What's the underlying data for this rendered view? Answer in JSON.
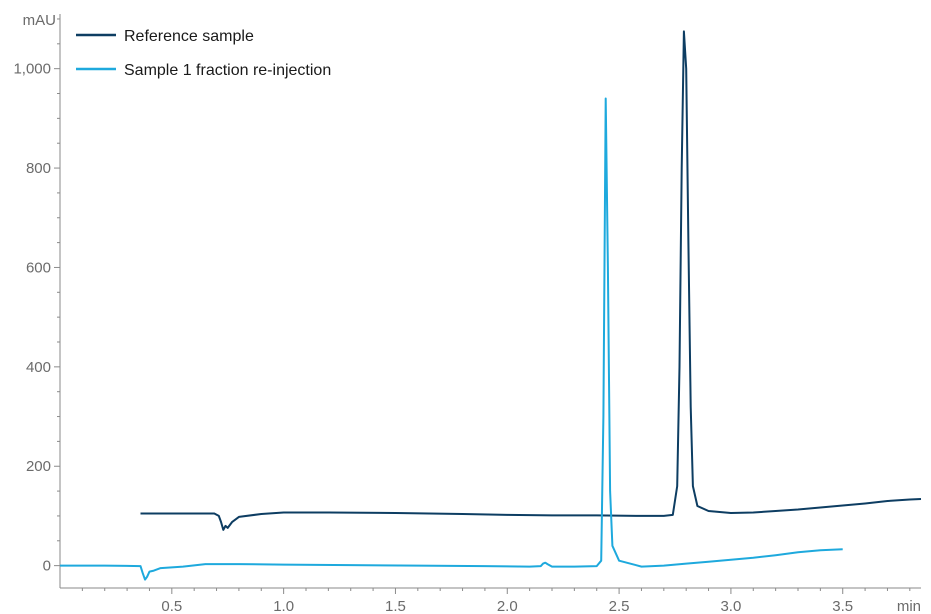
{
  "chart_data": {
    "type": "line",
    "xlabel": "min",
    "ylabel": "mAU",
    "xlim": [
      0,
      3.85
    ],
    "ylim": [
      -45,
      1110
    ],
    "x_ticks": [
      0.5,
      1.0,
      1.5,
      2.0,
      2.5,
      3.0,
      3.5
    ],
    "x_tick_labels": [
      "0.5",
      "1.0",
      "1.5",
      "2.0",
      "2.5",
      "3.0",
      "3.5"
    ],
    "y_ticks": [
      0,
      200,
      400,
      600,
      800,
      1000
    ],
    "y_tick_labels": [
      "0",
      "200",
      "400",
      "600",
      "800",
      "1,000"
    ],
    "grid": false,
    "legend_position": "top-left",
    "series": [
      {
        "name": "Reference sample",
        "color": "#0d3d62",
        "points": [
          [
            0.36,
            105
          ],
          [
            0.5,
            105
          ],
          [
            0.6,
            105
          ],
          [
            0.69,
            105
          ],
          [
            0.71,
            100
          ],
          [
            0.72,
            88
          ],
          [
            0.73,
            72
          ],
          [
            0.74,
            80
          ],
          [
            0.75,
            76
          ],
          [
            0.77,
            88
          ],
          [
            0.8,
            98
          ],
          [
            0.9,
            104
          ],
          [
            1.0,
            107
          ],
          [
            1.2,
            107
          ],
          [
            1.5,
            106
          ],
          [
            1.8,
            104
          ],
          [
            2.0,
            102
          ],
          [
            2.2,
            101
          ],
          [
            2.4,
            101
          ],
          [
            2.6,
            100
          ],
          [
            2.7,
            100
          ],
          [
            2.74,
            102
          ],
          [
            2.76,
            160
          ],
          [
            2.77,
            400
          ],
          [
            2.78,
            800
          ],
          [
            2.79,
            1075
          ],
          [
            2.8,
            1000
          ],
          [
            2.81,
            650
          ],
          [
            2.82,
            320
          ],
          [
            2.83,
            160
          ],
          [
            2.85,
            120
          ],
          [
            2.9,
            110
          ],
          [
            3.0,
            106
          ],
          [
            3.1,
            107
          ],
          [
            3.2,
            110
          ],
          [
            3.3,
            113
          ],
          [
            3.4,
            117
          ],
          [
            3.5,
            121
          ],
          [
            3.6,
            125
          ],
          [
            3.7,
            130
          ],
          [
            3.8,
            133
          ],
          [
            3.85,
            134
          ]
        ]
      },
      {
        "name": "Sample 1 fraction re-injection",
        "color": "#1ea9dd",
        "points": [
          [
            0.0,
            0
          ],
          [
            0.2,
            0
          ],
          [
            0.36,
            -1
          ],
          [
            0.37,
            -15
          ],
          [
            0.38,
            -28
          ],
          [
            0.39,
            -22
          ],
          [
            0.4,
            -12
          ],
          [
            0.42,
            -10
          ],
          [
            0.45,
            -5
          ],
          [
            0.55,
            -2
          ],
          [
            0.65,
            3
          ],
          [
            0.8,
            3
          ],
          [
            1.0,
            2
          ],
          [
            1.3,
            1
          ],
          [
            1.6,
            0
          ],
          [
            1.9,
            -1
          ],
          [
            2.1,
            -2
          ],
          [
            2.15,
            -1
          ],
          [
            2.16,
            4
          ],
          [
            2.17,
            6
          ],
          [
            2.18,
            3
          ],
          [
            2.2,
            -2
          ],
          [
            2.3,
            -2
          ],
          [
            2.4,
            -1
          ],
          [
            2.42,
            10
          ],
          [
            2.43,
            300
          ],
          [
            2.44,
            940
          ],
          [
            2.45,
            600
          ],
          [
            2.46,
            150
          ],
          [
            2.47,
            40
          ],
          [
            2.5,
            10
          ],
          [
            2.6,
            -2
          ],
          [
            2.7,
            0
          ],
          [
            2.8,
            4
          ],
          [
            2.9,
            8
          ],
          [
            3.0,
            12
          ],
          [
            3.1,
            16
          ],
          [
            3.2,
            21
          ],
          [
            3.3,
            27
          ],
          [
            3.4,
            31
          ],
          [
            3.5,
            33
          ]
        ]
      }
    ]
  }
}
